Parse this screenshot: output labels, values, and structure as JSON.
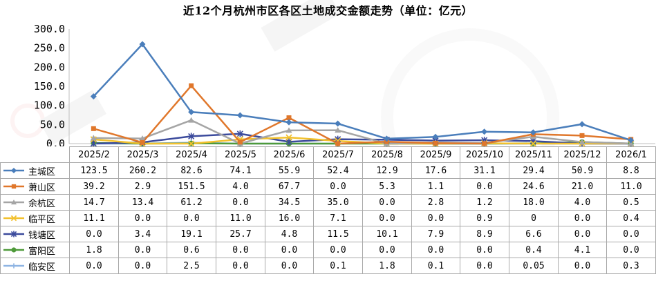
{
  "chart_data": {
    "type": "line",
    "title": "近12个月杭州市区各区土地成交金额走势（单位：亿元）",
    "categories": [
      "2025/2",
      "2025/3",
      "2025/4",
      "2025/5",
      "2025/6",
      "2025/7",
      "2025/8",
      "2025/9",
      "2025/10",
      "2025/11",
      "2025/12",
      "2026/1"
    ],
    "ylim": [
      0,
      300
    ],
    "yticks": [
      "300.0",
      "250.0",
      "200.0",
      "150.0",
      "100.0",
      "50.0",
      "0.0"
    ],
    "grid": false,
    "legend": "table-left",
    "series": [
      {
        "name": "主城区",
        "color": "#4a7ebb",
        "marker": "diamond",
        "values": [
          123.5,
          260.2,
          82.6,
          74.1,
          55.9,
          52.4,
          12.9,
          17.6,
          31.1,
          29.4,
          50.9,
          8.8
        ],
        "labels": [
          "123.5",
          "260.2",
          "82.6",
          "74.1",
          "55.9",
          "52.4",
          "12.9",
          "17.6",
          "31.1",
          "29.4",
          "50.9",
          "8.8"
        ]
      },
      {
        "name": "萧山区",
        "color": "#e0772b",
        "marker": "square",
        "values": [
          39.2,
          2.9,
          151.5,
          4.0,
          67.7,
          0.0,
          5.3,
          1.1,
          0.0,
          24.6,
          21.0,
          11.0
        ],
        "labels": [
          "39.2",
          "2.9",
          "151.5",
          "4.0",
          "67.7",
          "0.0",
          "5.3",
          "1.1",
          "0.0",
          "24.6",
          "21.0",
          "11.0"
        ]
      },
      {
        "name": "余杭区",
        "color": "#a5a5a5",
        "marker": "triangle",
        "values": [
          14.7,
          13.4,
          61.2,
          0.0,
          34.5,
          35.0,
          0.0,
          2.8,
          1.2,
          18.0,
          4.0,
          0.5
        ],
        "labels": [
          "14.7",
          "13.4",
          "61.2",
          "0.0",
          "34.5",
          "35.0",
          "0.0",
          "2.8",
          "1.2",
          "18.0",
          "4.0",
          "0.5"
        ]
      },
      {
        "name": "临平区",
        "color": "#f2c12e",
        "marker": "x",
        "values": [
          11.1,
          0.0,
          0.0,
          11.0,
          16.0,
          7.1,
          0.0,
          0.0,
          0.9,
          0,
          0.0,
          0.4
        ],
        "labels": [
          "11.1",
          "0.0",
          "0.0",
          "11.0",
          "16.0",
          "7.1",
          "0.0",
          "0.0",
          "0.9",
          "0",
          "0.0",
          "0.4"
        ]
      },
      {
        "name": "钱塘区",
        "color": "#3b4a9c",
        "marker": "star",
        "values": [
          0.0,
          3.4,
          19.1,
          25.7,
          4.8,
          11.5,
          10.1,
          7.9,
          8.9,
          6.6,
          0.0,
          0.0
        ],
        "labels": [
          "0.0",
          "3.4",
          "19.1",
          "25.7",
          "4.8",
          "11.5",
          "10.1",
          "7.9",
          "8.9",
          "6.6",
          "0.0",
          "0.0"
        ]
      },
      {
        "name": "富阳区",
        "color": "#4e9a3a",
        "marker": "circle",
        "values": [
          1.8,
          0.0,
          0.6,
          0.0,
          0.0,
          0.0,
          0.0,
          0.0,
          0.0,
          0.4,
          4.1,
          0.0
        ],
        "labels": [
          "1.8",
          "0.0",
          "0.6",
          "0.0",
          "0.0",
          "0.0",
          "0.0",
          "0.0",
          "0.0",
          "0.4",
          "4.1",
          "0.0"
        ]
      },
      {
        "name": "临安区",
        "color": "#8eb4e3",
        "marker": "plus",
        "values": [
          0.0,
          0.0,
          2.5,
          0.0,
          0.0,
          0.1,
          1.8,
          0.1,
          0.0,
          0.05,
          0.0,
          0.3
        ],
        "labels": [
          "0.0",
          "0.0",
          "2.5",
          "0.0",
          "0.0",
          "0.1",
          "1.8",
          "0.1",
          "0.0",
          "0.05",
          "0.0",
          "0.3"
        ]
      }
    ]
  }
}
